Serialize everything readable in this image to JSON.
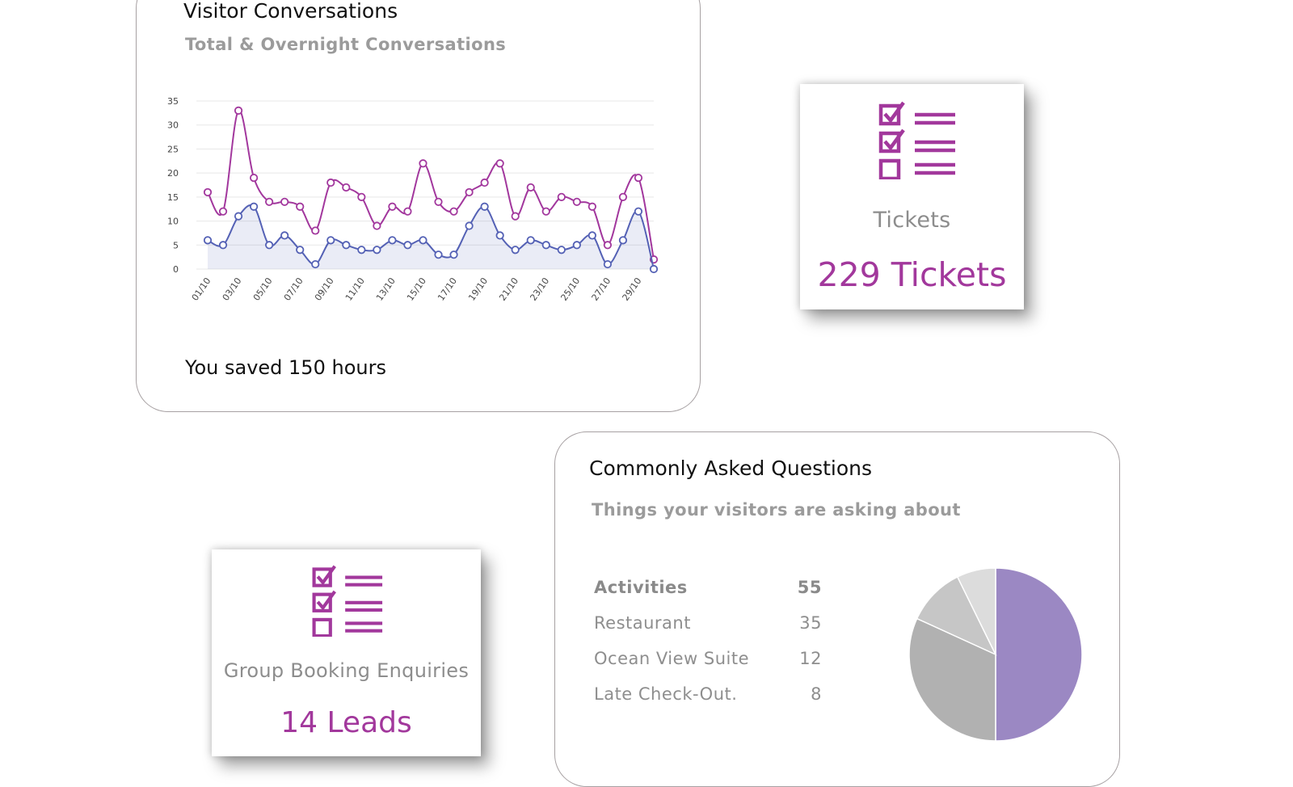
{
  "conversations": {
    "title": "Visitor Conversations",
    "subtitle": "Total & Overnight Conversations",
    "saved_text": "You saved 150 hours"
  },
  "tickets": {
    "label": "Tickets",
    "value": "229 Tickets"
  },
  "leads": {
    "label": "Group Booking Enquiries",
    "value": "14 Leads"
  },
  "faq": {
    "title": "Commonly Asked Questions",
    "subtitle": "Things your visitors are asking about",
    "items": [
      {
        "label": "Activities",
        "value": "55"
      },
      {
        "label": "Restaurant",
        "value": "35"
      },
      {
        "label": "Ocean View Suite",
        "value": "12"
      },
      {
        "label": "Late Check-Out.",
        "value": "8"
      }
    ]
  },
  "colors": {
    "accent": "#a2389c",
    "total_series": "#a2379d",
    "overnight_series": "#5461b5",
    "pie": [
      "#9b88c3",
      "#b1b1b1",
      "#c6c6c6",
      "#dcdcdc"
    ]
  },
  "chart_data": [
    {
      "type": "line",
      "title": "",
      "yticks": [
        0,
        5,
        10,
        15,
        20,
        25,
        30,
        35
      ],
      "ylim": [
        0,
        35
      ],
      "x": [
        "01/10",
        "02/10",
        "03/10",
        "04/10",
        "05/10",
        "06/10",
        "07/10",
        "08/10",
        "09/10",
        "10/10",
        "11/10",
        "12/10",
        "13/10",
        "14/10",
        "15/10",
        "16/10",
        "17/10",
        "18/10",
        "19/10",
        "20/10",
        "21/10",
        "22/10",
        "23/10",
        "24/10",
        "25/10",
        "26/10",
        "27/10",
        "28/10",
        "29/10",
        "30/10"
      ],
      "xtick_labels": [
        "01/10",
        "03/10",
        "05/10",
        "07/10",
        "09/10",
        "11/10",
        "13/10",
        "15/10",
        "17/10",
        "19/10",
        "21/10",
        "23/10",
        "25/10",
        "27/10",
        "29/10"
      ],
      "grid": true,
      "series": [
        {
          "values": [
            16,
            12,
            33,
            19,
            14,
            14,
            13,
            8,
            18,
            17,
            15,
            9,
            13,
            12,
            22,
            14,
            12,
            16,
            18,
            22,
            11,
            17,
            12,
            15,
            14,
            13,
            5,
            15,
            19,
            2
          ]
        },
        {
          "values": [
            6,
            5,
            11,
            13,
            5,
            7,
            4,
            1,
            6,
            5,
            4,
            4,
            6,
            5,
            6,
            3,
            3,
            9,
            13,
            7,
            4,
            6,
            5,
            4,
            5,
            7,
            1,
            6,
            12,
            0
          ]
        }
      ]
    },
    {
      "type": "pie",
      "categories": [
        "Activities",
        "Restaurant",
        "Ocean View Suite",
        "Late Check-Out."
      ],
      "values": [
        55,
        35,
        12,
        8
      ]
    }
  ]
}
